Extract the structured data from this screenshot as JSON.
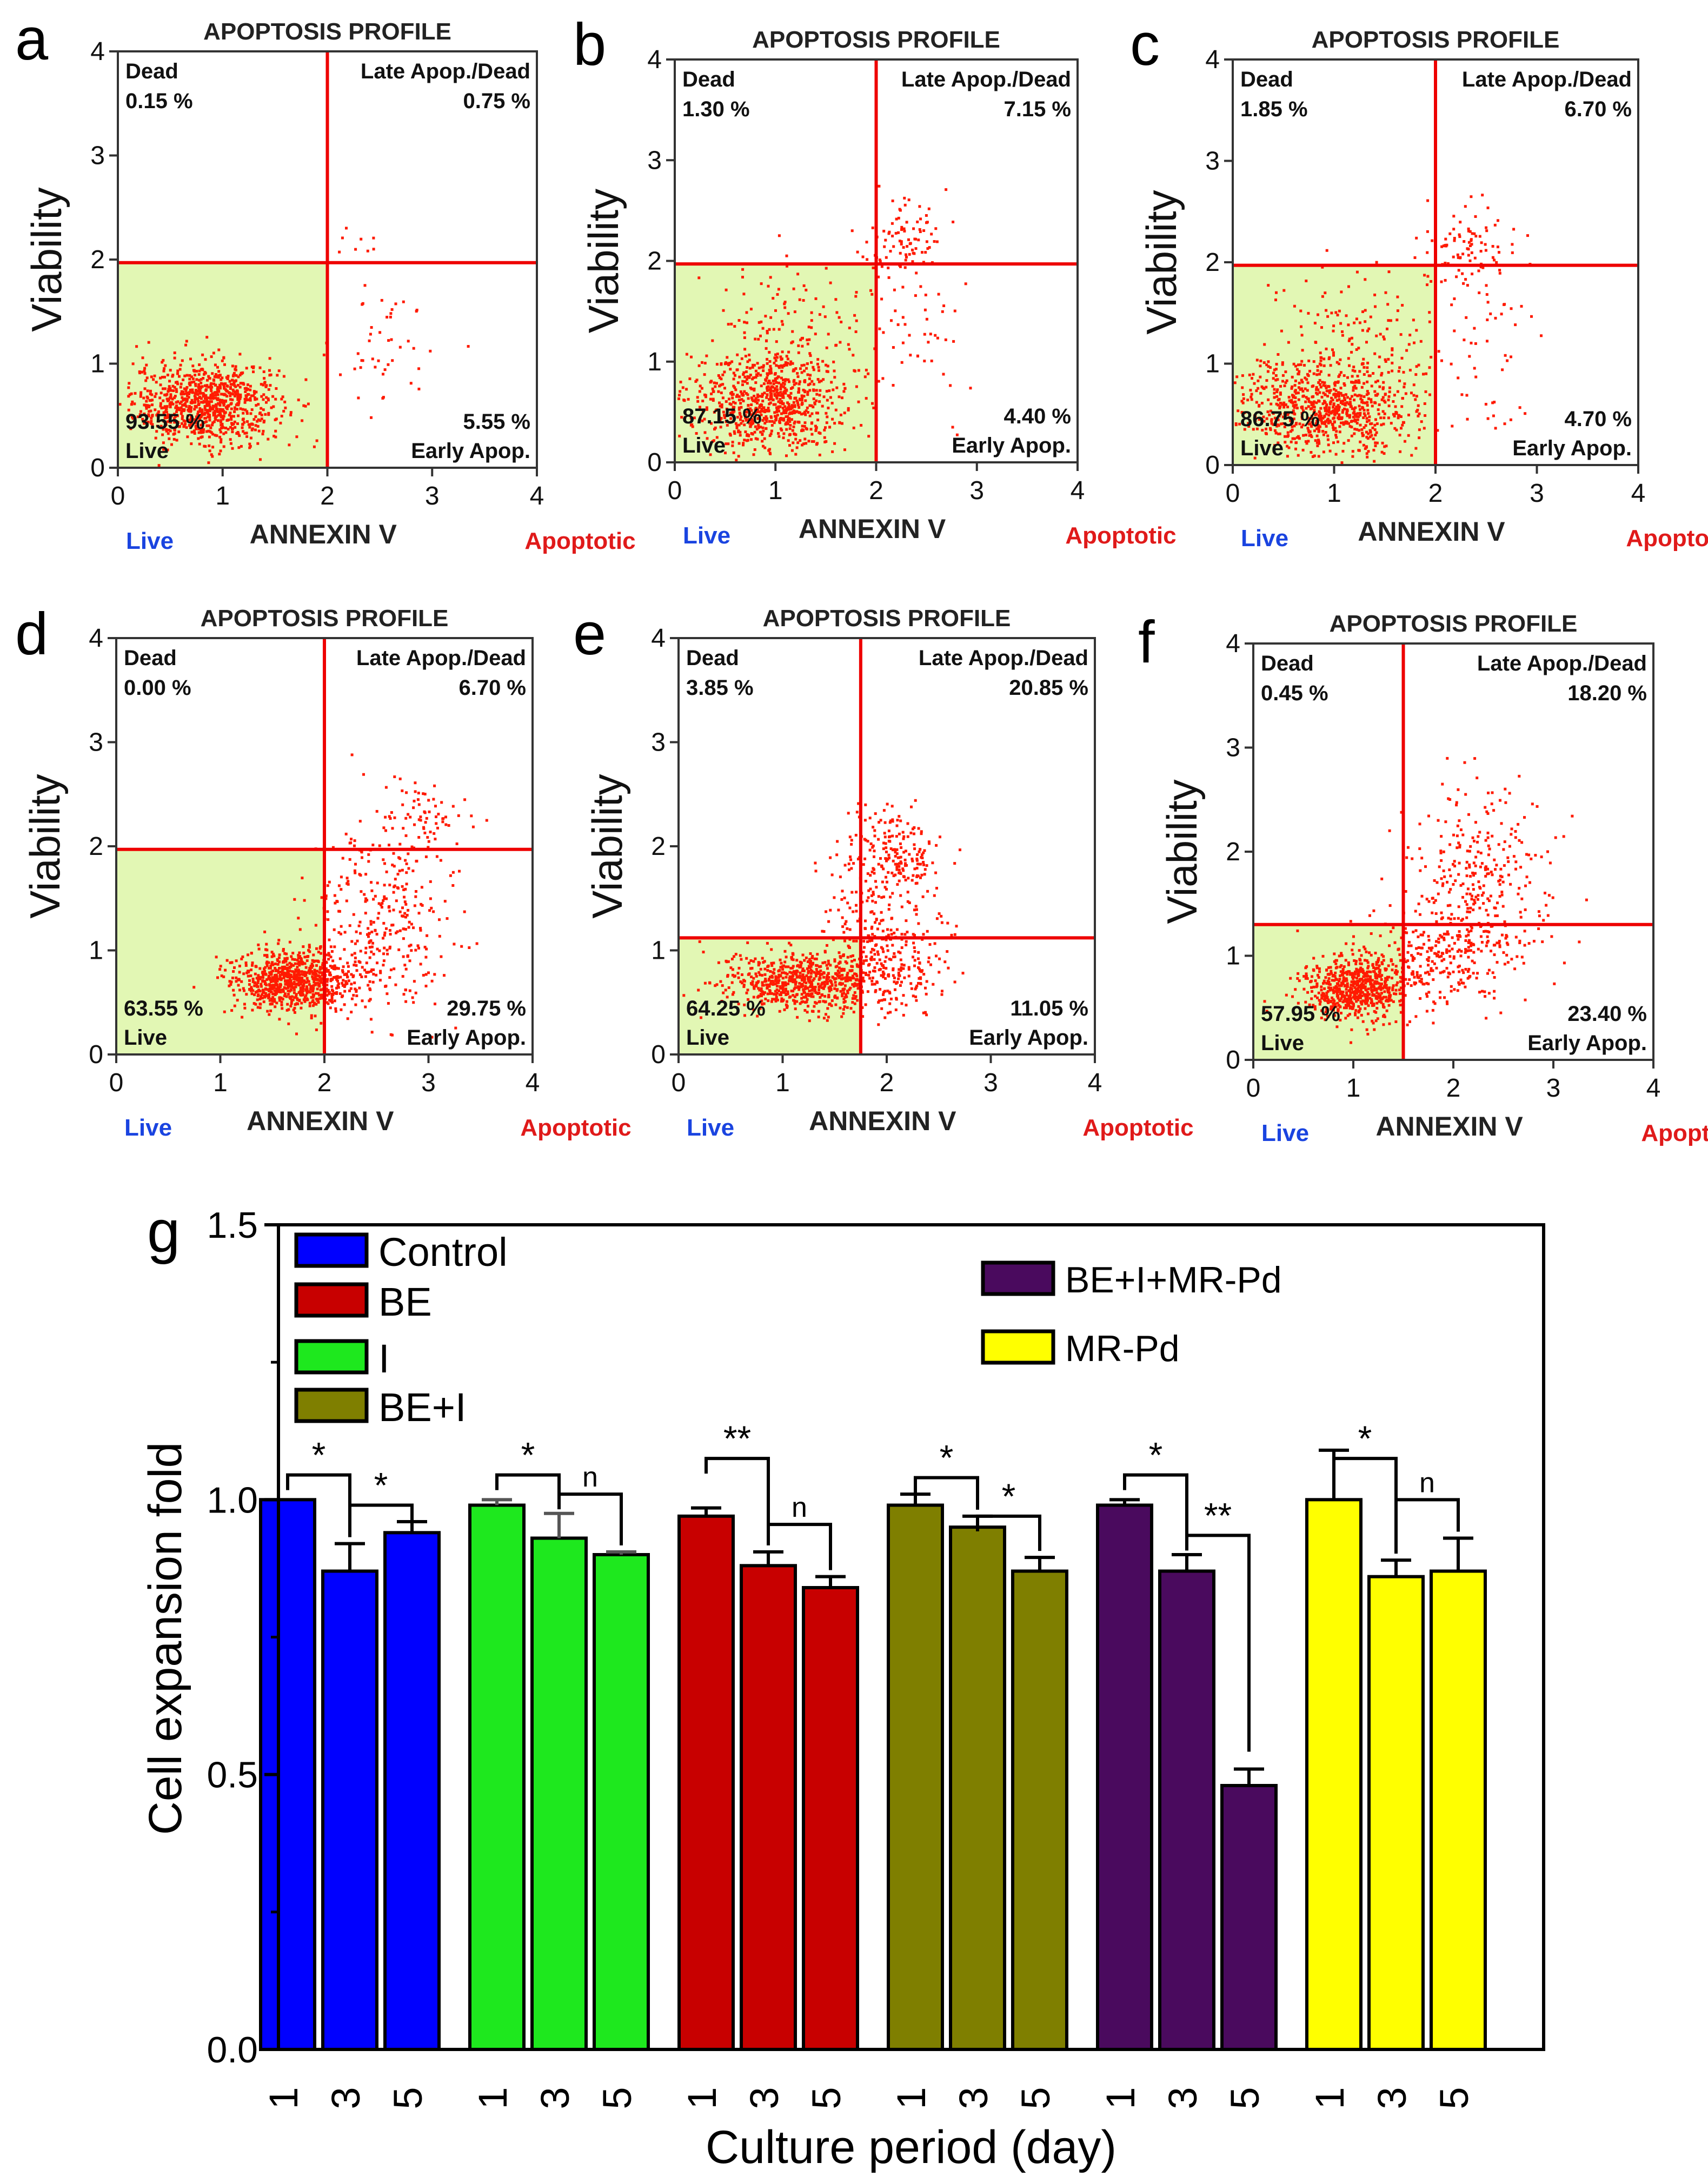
{
  "colors": {
    "live_fill": "#e2f7b4",
    "quad_line": "#ee0000",
    "dot": "#ff1a00",
    "live_label": "#1a44e0",
    "apoptotic_label": "#e01a1a"
  },
  "chart_data": [
    {
      "type": "scatter",
      "panel": "a",
      "title": "APOPTOSIS PROFILE",
      "xlabel": "ANNEXIN V",
      "ylabel": "Viability",
      "xlim": [
        0,
        4
      ],
      "ylim": [
        0,
        4
      ],
      "xticks": [
        "0",
        "1",
        "2",
        "3",
        "4"
      ],
      "yticks": [
        "0",
        "1",
        "2",
        "3",
        "4"
      ],
      "gate_x": 2.0,
      "gate_y": 1.97,
      "quadrants": {
        "dead_label": "Dead",
        "dead": "0.15 %",
        "late_label": "Late Apop./Dead",
        "late": "0.75 %",
        "live_label": "Live",
        "live": "93.55 %",
        "early_label": "Early Apop.",
        "early": "5.55 %"
      },
      "bottom_left": "Live",
      "bottom_right": "Apoptotic",
      "clusters": [
        {
          "cx": 0.85,
          "cy": 0.62,
          "sx": 0.35,
          "sy": 0.2,
          "n": 900
        },
        {
          "cx": 2.55,
          "cy": 1.15,
          "sx": 0.3,
          "sy": 0.3,
          "n": 45
        },
        {
          "cx": 2.3,
          "cy": 2.1,
          "sx": 0.15,
          "sy": 0.15,
          "n": 8
        }
      ]
    },
    {
      "type": "scatter",
      "panel": "b",
      "title": "APOPTOSIS PROFILE",
      "xlabel": "ANNEXIN V",
      "ylabel": "Viability",
      "xlim": [
        0,
        4
      ],
      "ylim": [
        0,
        4
      ],
      "xticks": [
        "0",
        "1",
        "2",
        "3",
        "4"
      ],
      "yticks": [
        "0",
        "1",
        "2",
        "3",
        "4"
      ],
      "gate_x": 2.0,
      "gate_y": 1.97,
      "quadrants": {
        "dead_label": "Dead",
        "dead": "1.30 %",
        "late_label": "Late Apop./Dead",
        "late": "7.15 %",
        "live_label": "Live",
        "live": "87.15 %",
        "early_label": "Early Apop.",
        "early": "4.40 %"
      },
      "bottom_left": "Live",
      "bottom_right": "Apoptotic",
      "clusters": [
        {
          "cx": 0.9,
          "cy": 0.6,
          "sx": 0.4,
          "sy": 0.25,
          "n": 800
        },
        {
          "cx": 1.2,
          "cy": 1.3,
          "sx": 0.4,
          "sy": 0.35,
          "n": 120
        },
        {
          "cx": 2.3,
          "cy": 2.2,
          "sx": 0.2,
          "sy": 0.2,
          "n": 90
        },
        {
          "cx": 2.5,
          "cy": 1.2,
          "sx": 0.3,
          "sy": 0.4,
          "n": 40
        }
      ]
    },
    {
      "type": "scatter",
      "panel": "c",
      "title": "APOPTOSIS PROFILE",
      "xlabel": "ANNEXIN V",
      "ylabel": "Viability",
      "xlim": [
        0,
        4
      ],
      "ylim": [
        0,
        4
      ],
      "xticks": [
        "0",
        "1",
        "2",
        "3",
        "4"
      ],
      "yticks": [
        "0",
        "1",
        "2",
        "3",
        "4"
      ],
      "gate_x": 2.0,
      "gate_y": 1.97,
      "quadrants": {
        "dead_label": "Dead",
        "dead": "1.85 %",
        "late_label": "Late Apop./Dead",
        "late": "6.70 %",
        "live_label": "Live",
        "live": "86.75 %",
        "early_label": "Early Apop.",
        "early": "4.70 %"
      },
      "bottom_left": "Live",
      "bottom_right": "Apoptotic",
      "clusters": [
        {
          "cx": 0.9,
          "cy": 0.55,
          "sx": 0.45,
          "sy": 0.25,
          "n": 800
        },
        {
          "cx": 1.3,
          "cy": 1.3,
          "sx": 0.45,
          "sy": 0.4,
          "n": 130
        },
        {
          "cx": 2.3,
          "cy": 2.15,
          "sx": 0.22,
          "sy": 0.2,
          "n": 90
        },
        {
          "cx": 2.5,
          "cy": 1.1,
          "sx": 0.3,
          "sy": 0.4,
          "n": 45
        }
      ]
    },
    {
      "type": "scatter",
      "panel": "d",
      "title": "APOPTOSIS PROFILE",
      "xlabel": "ANNEXIN V",
      "ylabel": "Viability",
      "xlim": [
        0,
        4
      ],
      "ylim": [
        0,
        4
      ],
      "xticks": [
        "0",
        "1",
        "2",
        "3",
        "4"
      ],
      "yticks": [
        "0",
        "1",
        "2",
        "3",
        "4"
      ],
      "gate_x": 2.0,
      "gate_y": 1.97,
      "quadrants": {
        "dead_label": "Dead",
        "dead": "0.00 %",
        "late_label": "Late Apop./Dead",
        "late": "6.70 %",
        "live_label": "Live",
        "live": "63.55 %",
        "early_label": "Early Apop.",
        "early": "29.75 %"
      },
      "bottom_left": "Live",
      "bottom_right": "Apoptotic",
      "clusters": [
        {
          "cx": 1.7,
          "cy": 0.7,
          "sx": 0.3,
          "sy": 0.15,
          "n": 800
        },
        {
          "cx": 2.5,
          "cy": 1.2,
          "sx": 0.35,
          "sy": 0.45,
          "n": 300
        },
        {
          "cx": 2.9,
          "cy": 2.2,
          "sx": 0.25,
          "sy": 0.25,
          "n": 90
        }
      ]
    },
    {
      "type": "scatter",
      "panel": "e",
      "title": "APOPTOSIS PROFILE",
      "xlabel": "ANNEXIN V",
      "ylabel": "Viability",
      "xlim": [
        0,
        4
      ],
      "ylim": [
        0,
        4
      ],
      "xticks": [
        "0",
        "1",
        "2",
        "3",
        "4"
      ],
      "yticks": [
        "0",
        "1",
        "2",
        "3",
        "4"
      ],
      "gate_x": 1.75,
      "gate_y": 1.12,
      "quadrants": {
        "dead_label": "Dead",
        "dead": "3.85 %",
        "late_label": "Late Apop./Dead",
        "late": "20.85 %",
        "live_label": "Live",
        "live": "64.25 %",
        "early_label": "Early Apop.",
        "early": "11.05 %"
      },
      "bottom_left": "Live",
      "bottom_right": "Apoptotic",
      "clusters": [
        {
          "cx": 1.2,
          "cy": 0.7,
          "sx": 0.4,
          "sy": 0.15,
          "n": 700
        },
        {
          "cx": 2.0,
          "cy": 0.9,
          "sx": 0.3,
          "sy": 0.25,
          "n": 200
        },
        {
          "cx": 2.1,
          "cy": 1.95,
          "sx": 0.22,
          "sy": 0.2,
          "n": 180
        },
        {
          "cx": 1.9,
          "cy": 1.4,
          "sx": 0.3,
          "sy": 0.3,
          "n": 100
        }
      ]
    },
    {
      "type": "scatter",
      "panel": "f",
      "title": "APOPTOSIS PROFILE",
      "xlabel": "ANNEXIN V",
      "ylabel": "Viability",
      "xlim": [
        0,
        4
      ],
      "ylim": [
        0,
        4
      ],
      "xticks": [
        "0",
        "1",
        "2",
        "3",
        "4"
      ],
      "yticks": [
        "0",
        "1",
        "2",
        "3",
        "4"
      ],
      "gate_x": 1.5,
      "gate_y": 1.3,
      "quadrants": {
        "dead_label": "Dead",
        "dead": "0.45 %",
        "late_label": "Late Apop./Dead",
        "late": "18.20 %",
        "live_label": "Live",
        "live": "57.95 %",
        "early_label": "Early Apop.",
        "early": "23.40 %"
      },
      "bottom_left": "Live",
      "bottom_right": "Apoptotic",
      "clusters": [
        {
          "cx": 1.0,
          "cy": 0.7,
          "sx": 0.25,
          "sy": 0.15,
          "n": 650
        },
        {
          "cx": 1.9,
          "cy": 1.0,
          "sx": 0.4,
          "sy": 0.25,
          "n": 300
        },
        {
          "cx": 2.3,
          "cy": 1.8,
          "sx": 0.35,
          "sy": 0.4,
          "n": 260
        }
      ]
    },
    {
      "type": "bar",
      "panel": "g",
      "xlabel": "Culture period (day)",
      "ylabel": "Cell expansion fold",
      "ylim": [
        0,
        1.5
      ],
      "yticks": [
        "0.0",
        "0.5",
        "1.0",
        "1.5"
      ],
      "categories": [
        "1",
        "3",
        "5"
      ],
      "series": [
        {
          "name": "Control",
          "color": "#0000ff",
          "values": [
            1.0,
            0.87,
            0.94
          ],
          "errors": [
            0.0,
            0.05,
            0.02
          ]
        },
        {
          "name": "I",
          "color": "#1ee81e",
          "values": [
            0.99,
            0.93,
            0.9
          ],
          "errors": [
            0.01,
            0.045,
            0.005
          ]
        },
        {
          "name": "BE",
          "color": "#c80000",
          "values": [
            0.97,
            0.88,
            0.84
          ],
          "errors": [
            0.015,
            0.025,
            0.02
          ]
        },
        {
          "name": "BE+I",
          "color": "#7f7f00",
          "values": [
            0.99,
            0.95,
            0.87
          ],
          "errors": [
            0.02,
            0.02,
            0.025
          ]
        },
        {
          "name": "BE+I+MR-Pd",
          "color": "#4a0a5e",
          "values": [
            0.99,
            0.87,
            0.48
          ],
          "errors": [
            0.01,
            0.03,
            0.03
          ]
        },
        {
          "name": "MR-Pd",
          "color": "#ffff00",
          "values": [
            1.0,
            0.86,
            0.87
          ],
          "errors": [
            0.09,
            0.03,
            0.06
          ]
        }
      ],
      "legend_left": [
        "Control",
        "BE",
        "I",
        "BE+I"
      ],
      "legend_right": [
        "BE+I+MR-Pd",
        "MR-Pd"
      ],
      "significance": [
        {
          "group": 0,
          "from": 0,
          "to": 1,
          "y": 1.045,
          "label": "*"
        },
        {
          "group": 0,
          "from": 1,
          "to": 2,
          "y": 0.99,
          "label": "*"
        },
        {
          "group": 1,
          "from": 0,
          "to": 1,
          "y": 1.045,
          "label": "*"
        },
        {
          "group": 1,
          "from": 1,
          "to": 2,
          "y": 1.01,
          "label": "n"
        },
        {
          "group": 2,
          "from": 0,
          "to": 1,
          "y": 1.075,
          "label": "**"
        },
        {
          "group": 2,
          "from": 1,
          "to": 2,
          "y": 0.955,
          "label": "n"
        },
        {
          "group": 3,
          "from": 0,
          "to": 1,
          "y": 1.04,
          "label": "*"
        },
        {
          "group": 3,
          "from": 1,
          "to": 2,
          "y": 0.97,
          "label": "*"
        },
        {
          "group": 4,
          "from": 0,
          "to": 1,
          "y": 1.045,
          "label": "*"
        },
        {
          "group": 4,
          "from": 1,
          "to": 2,
          "y": 0.935,
          "label": "**"
        },
        {
          "group": 5,
          "from": 0,
          "to": 1,
          "y": 1.075,
          "label": "*"
        },
        {
          "group": 5,
          "from": 1,
          "to": 2,
          "y": 1.0,
          "label": "n"
        }
      ]
    }
  ]
}
